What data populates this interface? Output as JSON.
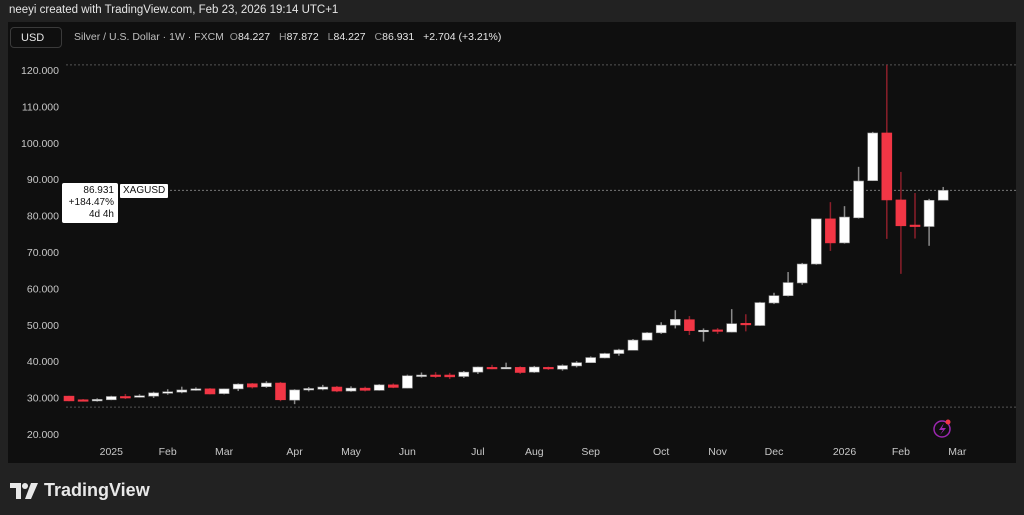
{
  "header": {
    "credit": "neeyi created with TradingView.com, Feb 23, 2026 19:14 UTC+1",
    "currency_button": "USD",
    "symbol_desc": "Silver / U.S. Dollar · 1W · FXCM",
    "ohlc": {
      "o_label": "O",
      "o": "84.227",
      "h_label": "H",
      "h": "87.872",
      "l_label": "L",
      "l": "84.227",
      "c_label": "C",
      "c": "86.931",
      "change": "+2.704 (+3.21%)"
    }
  },
  "price_label": {
    "price": "86.931",
    "change_pct": "+184.47%",
    "countdown": "4d 4h",
    "symbol": "XAGUSD"
  },
  "logo_text": "TradingView",
  "colors": {
    "up": "#ffffff",
    "down": "#f23645",
    "up_wick": "#8a8a8a",
    "down_wick": "#8b1f2a",
    "background": "#0f0f0f",
    "frame": "#222222",
    "alert_icon": "#9c27b0"
  },
  "icons": {
    "alert": "lightning-bolt-icon"
  },
  "chart_data": {
    "type": "candlestick",
    "symbol": "XAGUSD",
    "interval": "1W",
    "ylim": [
      15,
      125
    ],
    "y_ticks": [
      "20.000",
      "30.000",
      "40.000",
      "50.000",
      "60.000",
      "70.000",
      "80.000",
      "90.000",
      "100.000",
      "110.000",
      "120.000"
    ],
    "x_labels": [
      {
        "label": "2025",
        "date": "2025-01-06"
      },
      {
        "label": "Feb",
        "date": "2025-02-03"
      },
      {
        "label": "Mar",
        "date": "2025-03-03"
      },
      {
        "label": "Apr",
        "date": "2025-04-07"
      },
      {
        "label": "May",
        "date": "2025-05-05"
      },
      {
        "label": "Jun",
        "date": "2025-06-02"
      },
      {
        "label": "Jul",
        "date": "2025-07-07"
      },
      {
        "label": "Aug",
        "date": "2025-08-04"
      },
      {
        "label": "Sep",
        "date": "2025-09-01"
      },
      {
        "label": "Oct",
        "date": "2025-10-06"
      },
      {
        "label": "Nov",
        "date": "2025-11-03"
      },
      {
        "label": "Dec",
        "date": "2025-12-01"
      },
      {
        "label": "2026",
        "date": "2026-01-05"
      },
      {
        "label": "Feb",
        "date": "2026-02-02"
      },
      {
        "label": "Mar",
        "date": "2026-03-02"
      }
    ],
    "candles_columns": [
      "date",
      "open",
      "high",
      "low",
      "close"
    ],
    "candles": [
      [
        "2024-12-16",
        30.4,
        30.5,
        29.0,
        29.1
      ],
      [
        "2024-12-23",
        29.4,
        29.6,
        29.0,
        29.2
      ],
      [
        "2024-12-30",
        29.2,
        29.8,
        28.9,
        29.5
      ],
      [
        "2025-01-06",
        29.4,
        30.5,
        29.3,
        30.3
      ],
      [
        "2025-01-13",
        30.3,
        31.0,
        29.6,
        30.1
      ],
      [
        "2025-01-20",
        30.2,
        30.9,
        30.0,
        30.5
      ],
      [
        "2025-01-27",
        30.4,
        31.6,
        29.9,
        31.3
      ],
      [
        "2025-02-03",
        31.2,
        32.3,
        30.8,
        31.6
      ],
      [
        "2025-02-10",
        31.5,
        33.0,
        31.2,
        32.1
      ],
      [
        "2025-02-17",
        32.0,
        32.8,
        31.9,
        32.4
      ],
      [
        "2025-02-24",
        32.4,
        32.6,
        30.9,
        31.0
      ],
      [
        "2025-03-03",
        31.1,
        32.5,
        30.9,
        32.4
      ],
      [
        "2025-03-10",
        32.4,
        33.9,
        31.8,
        33.7
      ],
      [
        "2025-03-17",
        33.8,
        34.0,
        32.5,
        32.9
      ],
      [
        "2025-03-24",
        33.0,
        34.5,
        32.7,
        34.0
      ],
      [
        "2025-03-31",
        34.0,
        34.3,
        29.0,
        29.4
      ],
      [
        "2025-04-07",
        29.3,
        32.3,
        28.2,
        32.1
      ],
      [
        "2025-04-14",
        32.1,
        32.9,
        31.7,
        32.5
      ],
      [
        "2025-04-21",
        32.3,
        33.5,
        32.0,
        32.9
      ],
      [
        "2025-04-28",
        32.9,
        33.2,
        31.5,
        31.8
      ],
      [
        "2025-05-05",
        31.8,
        33.1,
        31.6,
        32.6
      ],
      [
        "2025-05-12",
        32.6,
        33.0,
        31.7,
        32.0
      ],
      [
        "2025-05-19",
        32.0,
        33.7,
        31.9,
        33.5
      ],
      [
        "2025-05-26",
        33.5,
        33.9,
        32.6,
        32.8
      ],
      [
        "2025-06-02",
        32.6,
        36.3,
        32.5,
        36.0
      ],
      [
        "2025-06-09",
        35.8,
        36.9,
        35.5,
        36.2
      ],
      [
        "2025-06-16",
        36.2,
        37.0,
        35.4,
        35.9
      ],
      [
        "2025-06-23",
        36.2,
        36.8,
        35.1,
        35.7
      ],
      [
        "2025-06-30",
        35.8,
        37.3,
        35.4,
        37.0
      ],
      [
        "2025-07-07",
        37.0,
        38.5,
        36.5,
        38.4
      ],
      [
        "2025-07-14",
        38.3,
        39.0,
        37.8,
        38.1
      ],
      [
        "2025-07-21",
        38.2,
        39.6,
        37.9,
        38.3
      ],
      [
        "2025-07-28",
        38.3,
        38.6,
        36.5,
        36.9
      ],
      [
        "2025-08-04",
        37.0,
        38.7,
        36.8,
        38.4
      ],
      [
        "2025-08-11",
        38.3,
        38.5,
        37.6,
        38.0
      ],
      [
        "2025-08-18",
        37.8,
        39.1,
        37.4,
        38.8
      ],
      [
        "2025-08-25",
        38.7,
        40.0,
        38.3,
        39.6
      ],
      [
        "2025-09-01",
        39.6,
        41.3,
        39.5,
        41.0
      ],
      [
        "2025-09-08",
        40.9,
        42.3,
        40.8,
        42.1
      ],
      [
        "2025-09-15",
        42.1,
        43.4,
        41.5,
        43.1
      ],
      [
        "2025-09-22",
        43.0,
        46.1,
        43.0,
        45.8
      ],
      [
        "2025-09-29",
        45.8,
        48.0,
        45.7,
        47.8
      ],
      [
        "2025-10-06",
        47.8,
        50.7,
        47.5,
        49.9
      ],
      [
        "2025-10-13",
        49.9,
        54.0,
        49.0,
        51.5
      ],
      [
        "2025-10-20",
        51.4,
        52.4,
        47.2,
        48.4
      ],
      [
        "2025-10-27",
        48.4,
        49.0,
        45.4,
        48.5
      ],
      [
        "2025-11-03",
        48.6,
        49.1,
        47.5,
        48.3
      ],
      [
        "2025-11-10",
        48.0,
        54.3,
        47.9,
        50.3
      ],
      [
        "2025-11-17",
        50.4,
        52.9,
        48.2,
        50.0
      ],
      [
        "2025-11-24",
        49.8,
        56.3,
        49.7,
        56.1
      ],
      [
        "2025-12-01",
        56.0,
        58.8,
        55.7,
        58.0
      ],
      [
        "2025-12-08",
        58.0,
        64.5,
        57.8,
        61.6
      ],
      [
        "2025-12-15",
        61.5,
        67.0,
        61.0,
        66.7
      ],
      [
        "2025-12-22",
        66.7,
        79.2,
        66.5,
        79.1
      ],
      [
        "2025-12-29",
        79.1,
        83.7,
        70.3,
        72.5
      ],
      [
        "2026-01-05",
        72.5,
        82.6,
        72.3,
        79.6
      ],
      [
        "2026-01-12",
        79.4,
        93.4,
        79.2,
        89.5
      ],
      [
        "2026-01-19",
        89.6,
        103.0,
        89.5,
        102.7
      ],
      [
        "2026-01-26",
        102.7,
        121.4,
        73.6,
        84.3
      ],
      [
        "2026-02-02",
        84.3,
        92.0,
        64.0,
        77.2
      ],
      [
        "2026-02-09",
        77.4,
        86.2,
        73.7,
        77.0
      ],
      [
        "2026-02-16",
        77.0,
        84.6,
        71.7,
        84.2
      ],
      [
        "2026-02-23",
        84.227,
        87.872,
        84.227,
        86.931
      ]
    ]
  }
}
